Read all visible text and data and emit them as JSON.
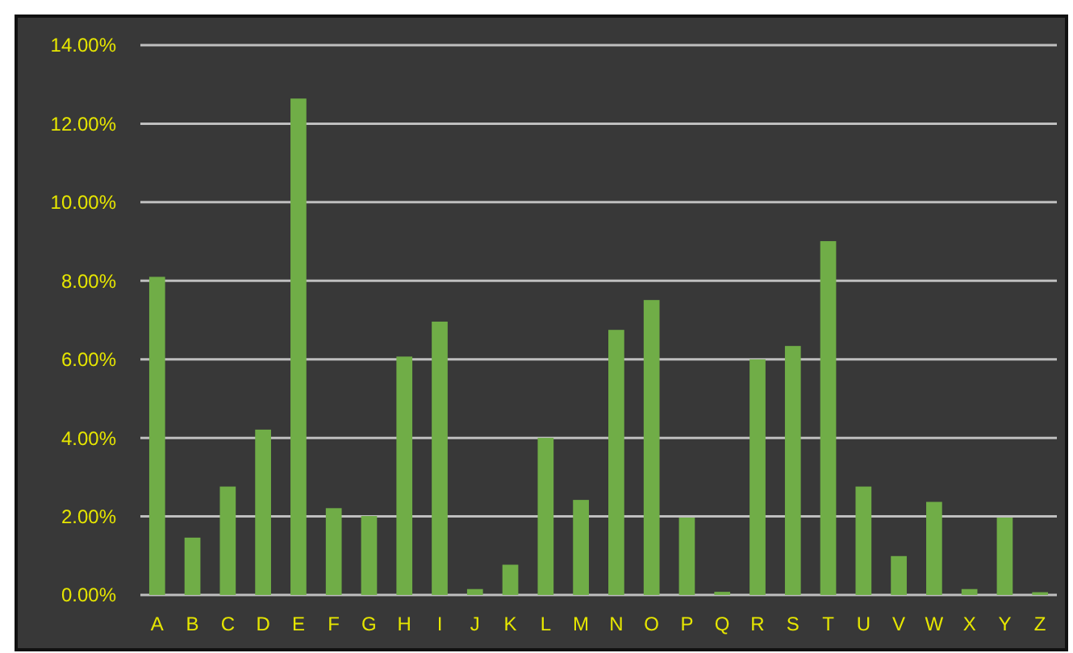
{
  "chart_data": {
    "type": "bar",
    "categories": [
      "A",
      "B",
      "C",
      "D",
      "E",
      "F",
      "G",
      "H",
      "I",
      "J",
      "K",
      "L",
      "M",
      "N",
      "O",
      "P",
      "Q",
      "R",
      "S",
      "T",
      "U",
      "V",
      "W",
      "X",
      "Y",
      "Z"
    ],
    "values": [
      8.1,
      1.46,
      2.76,
      4.21,
      12.64,
      2.21,
      2.01,
      6.07,
      6.96,
      0.15,
      0.77,
      4.0,
      2.42,
      6.75,
      7.51,
      1.97,
      0.08,
      6.0,
      6.34,
      9.01,
      2.76,
      0.99,
      2.37,
      0.15,
      1.97,
      0.07
    ],
    "color": "#70ad47",
    "ylim": [
      0,
      14
    ],
    "yticks": [
      {
        "value": 0,
        "label": "0.00%"
      },
      {
        "value": 2,
        "label": "2.00%"
      },
      {
        "value": 4,
        "label": "4.00%"
      },
      {
        "value": 6,
        "label": "6.00%"
      },
      {
        "value": 8,
        "label": "8.00%"
      },
      {
        "value": 10,
        "label": "10.00%"
      },
      {
        "value": 12,
        "label": "12.00%"
      },
      {
        "value": 14,
        "label": "14.00%"
      }
    ],
    "grid": "y"
  }
}
